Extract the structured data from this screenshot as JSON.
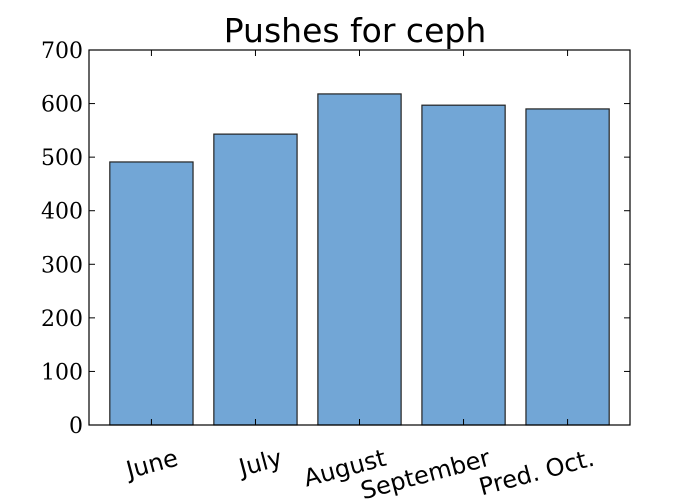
{
  "chart_data": {
    "type": "bar",
    "title": "Pushes for ceph",
    "categories": [
      "June",
      "July",
      "August",
      "September",
      "Pred. Oct."
    ],
    "values": [
      491,
      543,
      618,
      597,
      590
    ],
    "ylim": [
      0,
      700
    ],
    "yticks": [
      0,
      100,
      200,
      300,
      400,
      500,
      600,
      700
    ],
    "xlabel": "",
    "ylabel": "",
    "grid": false,
    "bar_color": "#72a6d6"
  }
}
